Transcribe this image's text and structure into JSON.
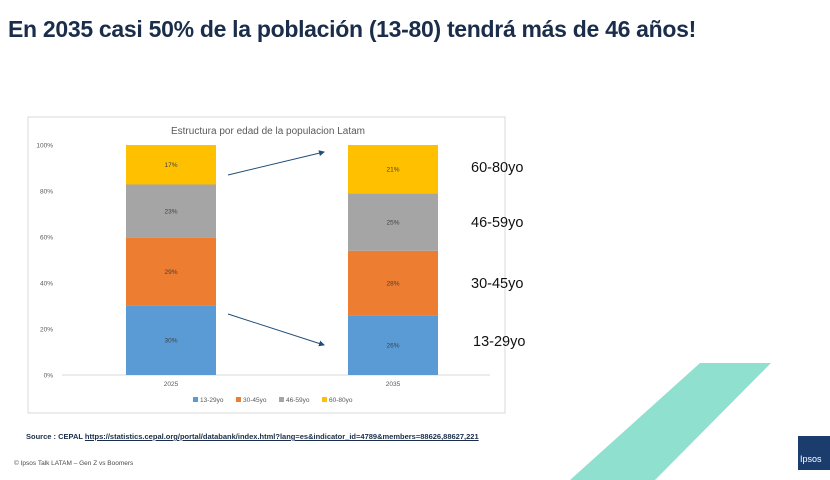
{
  "slide": {
    "title": "En 2035 casi 50% de la población (13-80) tendrá más de 46 años!",
    "source_prefix": "Source : CEPAL",
    "source_url": "https://statistics.cepal.org/portal/databank/index.html?lang=es&indicator_id=4789&members=88626,88627,221",
    "footer": "© Ipsos Talk LATAM – Gen Z vs Boomers",
    "logo_text": "Ipsos"
  },
  "group_labels": [
    "60-80yo",
    "46-59yo",
    "30-45yo",
    "13-29yo"
  ],
  "colors": {
    "13-29yo": "#5b9bd5",
    "30-45yo": "#ed7d31",
    "46-59yo": "#a5a5a5",
    "60-80yo": "#ffc000",
    "arrow": "#1f4e79",
    "title": "#1a2d4a",
    "deco": "#8fe0cf"
  },
  "chart_data": {
    "type": "bar",
    "stacked": true,
    "percent_stacked": true,
    "title": "Estructura por edad de la populacion Latam",
    "categories": [
      "2025",
      "2035"
    ],
    "series": [
      {
        "name": "13-29yo",
        "values": [
          30,
          26
        ],
        "labels": [
          "30%",
          "26%"
        ]
      },
      {
        "name": "30-45yo",
        "values": [
          29,
          28
        ],
        "labels": [
          "29%",
          "28%"
        ]
      },
      {
        "name": "46-59yo",
        "values": [
          23,
          25
        ],
        "labels": [
          "23%",
          "25%"
        ]
      },
      {
        "name": "60-80yo",
        "values": [
          17,
          21
        ],
        "labels": [
          "17%",
          "21%"
        ]
      }
    ],
    "yticks": [
      "0%",
      "20%",
      "40%",
      "60%",
      "80%",
      "100%"
    ],
    "ylim": [
      0,
      100
    ],
    "legend_position": "bottom",
    "grid": false
  }
}
